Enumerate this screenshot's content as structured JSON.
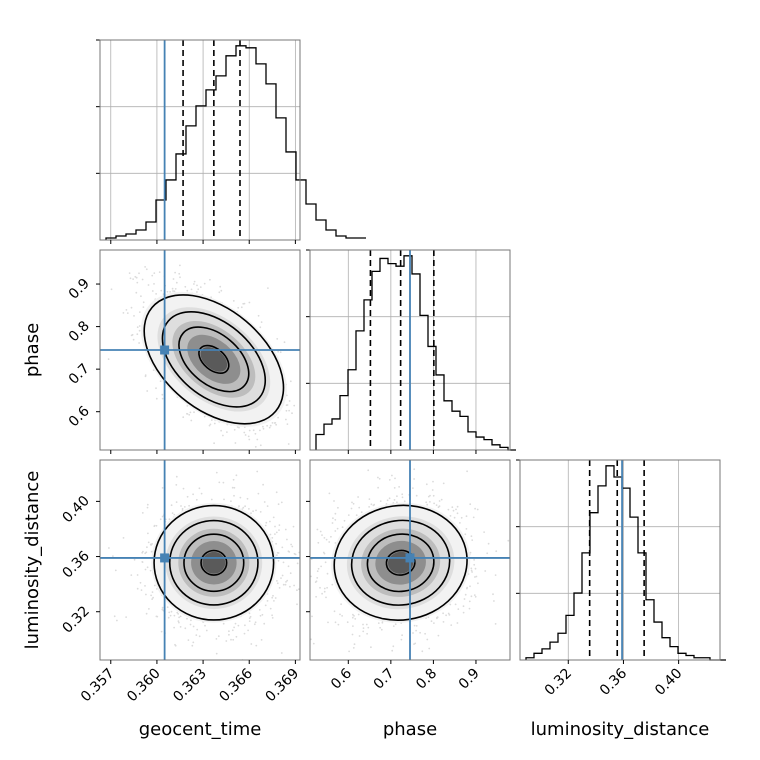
{
  "chart_data": {
    "type": "corner",
    "parameters": [
      "geocent_time",
      "phase",
      "luminosity_distance"
    ],
    "axis_labels": {
      "geocent_time": "geocent_time",
      "phase": "phase",
      "luminosity_distance": "luminosity_distance"
    },
    "truths": {
      "geocent_time": 0.3605,
      "phase": 0.745,
      "luminosity_distance": 0.359
    },
    "truth_color": "#4682b4",
    "ranges": {
      "geocent_time": [
        0.3563,
        0.3693
      ],
      "phase": [
        0.51,
        0.98
      ],
      "luminosity_distance": [
        0.285,
        0.43
      ]
    },
    "ticks": {
      "geocent_time": {
        "values": [
          0.357,
          0.36,
          0.363,
          0.366,
          0.369
        ],
        "labels": [
          "0.357",
          "0.360",
          "0.363",
          "0.366",
          "0.369"
        ]
      },
      "phase": {
        "values": [
          0.6,
          0.7,
          0.8,
          0.9
        ],
        "labels": [
          "0.6",
          "0.7",
          "0.8",
          "0.9"
        ]
      },
      "luminosity_distance": {
        "values": [
          0.32,
          0.36,
          0.4
        ],
        "labels": [
          "0.32",
          "0.36",
          "0.40"
        ]
      }
    },
    "quantiles": {
      "geocent_time": [
        0.3617,
        0.3637,
        0.3654
      ],
      "phase": [
        0.652,
        0.723,
        0.801
      ],
      "luminosity_distance": [
        0.3355,
        0.3555,
        0.375
      ]
    },
    "histograms": {
      "geocent_time": {
        "bin_width": 0.00065,
        "counts": [
          1,
          2,
          3,
          5,
          9,
          20,
          30,
          43,
          57,
          67,
          75,
          82,
          92,
          97,
          96,
          88,
          78,
          61,
          44,
          30,
          18,
          10,
          5,
          2,
          1,
          1
        ]
      },
      "phase": {
        "bin_width": 0.0188,
        "counts": [
          6,
          10,
          12,
          21,
          31,
          46,
          58,
          69,
          74,
          72,
          71,
          75,
          68,
          52,
          40,
          29,
          19,
          15,
          13,
          7,
          5,
          4,
          2,
          1,
          0
        ]
      },
      "luminosity_distance": {
        "bin_width": 0.0058,
        "counts": [
          1,
          3,
          5,
          8,
          12,
          20,
          30,
          48,
          66,
          78,
          87,
          82,
          77,
          64,
          48,
          27,
          17,
          10,
          6,
          3,
          2,
          1,
          1,
          0,
          0
        ]
      }
    },
    "grid": true
  }
}
